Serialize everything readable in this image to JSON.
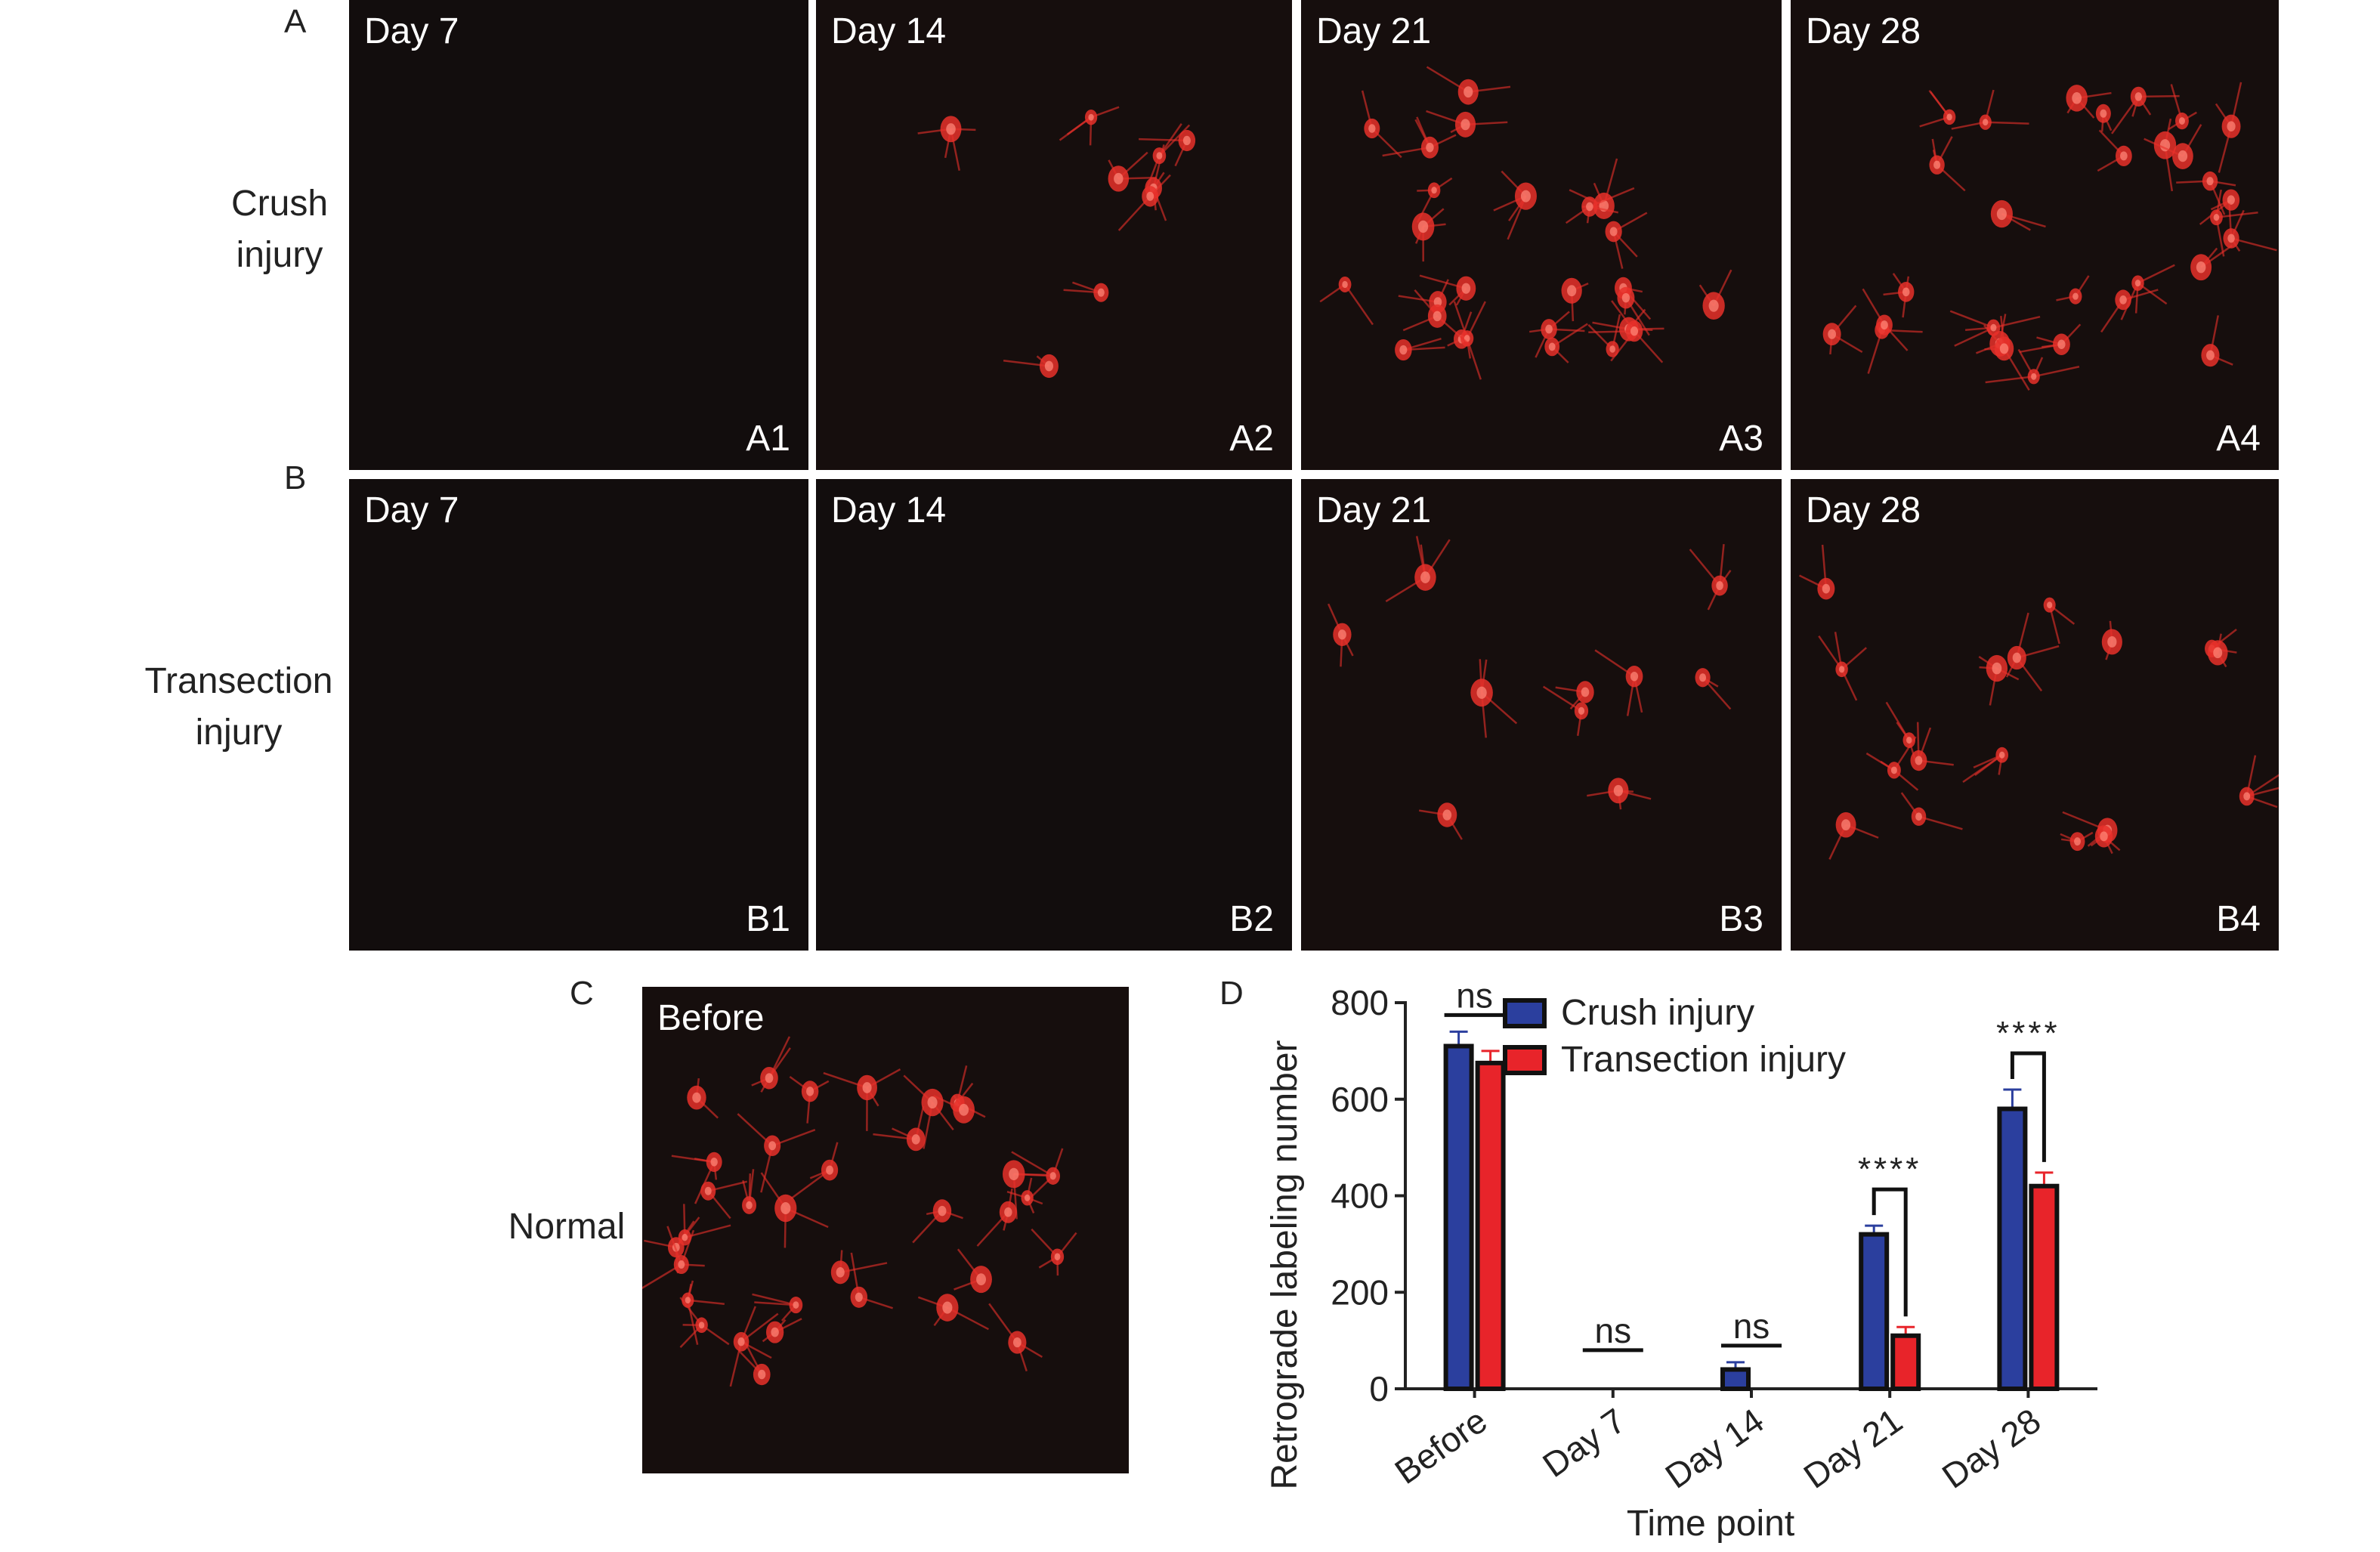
{
  "figure": {
    "letters": {
      "A": "A",
      "B": "B",
      "C": "C",
      "D": "D"
    },
    "row_labels": {
      "crush_line1": "Crush",
      "crush_line2": "injury",
      "transection_line1": "Transection",
      "transection_line2": "injury",
      "normal": "Normal"
    },
    "panels": [
      {
        "id": "A1",
        "title": "Day 7",
        "cells": 0
      },
      {
        "id": "A2",
        "title": "Day 14",
        "cells": 9
      },
      {
        "id": "A3",
        "title": "Day 21",
        "cells": 26
      },
      {
        "id": "A4",
        "title": "Day 28",
        "cells": 30
      },
      {
        "id": "B1",
        "title": "Day 7",
        "cells": 0
      },
      {
        "id": "B2",
        "title": "Day 14",
        "cells": 0
      },
      {
        "id": "B3",
        "title": "Day 21",
        "cells": 10
      },
      {
        "id": "B4",
        "title": "Day 28",
        "cells": 18
      },
      {
        "id": "",
        "title": "Before",
        "cells": 34
      }
    ],
    "colors": {
      "fluorescence": "#e8302a",
      "panel_bg": "#0f0f0f"
    }
  },
  "chart_data": {
    "type": "bar",
    "title": "",
    "xlabel": "Time point",
    "ylabel": "Retrograde labeling number",
    "categories": [
      "Before",
      "Day 7",
      "Day 14",
      "Day 21",
      "Day 28"
    ],
    "ylim": [
      0,
      800
    ],
    "yticks": [
      "0",
      "200",
      "400",
      "600",
      "800"
    ],
    "series": [
      {
        "name": "Crush injury",
        "color": "#2b3f9e",
        "values": [
          710,
          0,
          40,
          320,
          580
        ],
        "errors": [
          30,
          0,
          15,
          18,
          40
        ]
      },
      {
        "name": "Transection injury",
        "color": "#e8242a",
        "values": [
          675,
          0,
          0,
          110,
          420
        ],
        "errors": [
          25,
          0,
          0,
          18,
          28
        ]
      }
    ],
    "significance": [
      {
        "category": "Before",
        "label": "ns"
      },
      {
        "category": "Day 7",
        "label": "ns"
      },
      {
        "category": "Day 14",
        "label": "ns"
      },
      {
        "category": "Day 21",
        "label": "****"
      },
      {
        "category": "Day 28",
        "label": "****"
      }
    ],
    "legend": "top-right",
    "grid": false
  }
}
